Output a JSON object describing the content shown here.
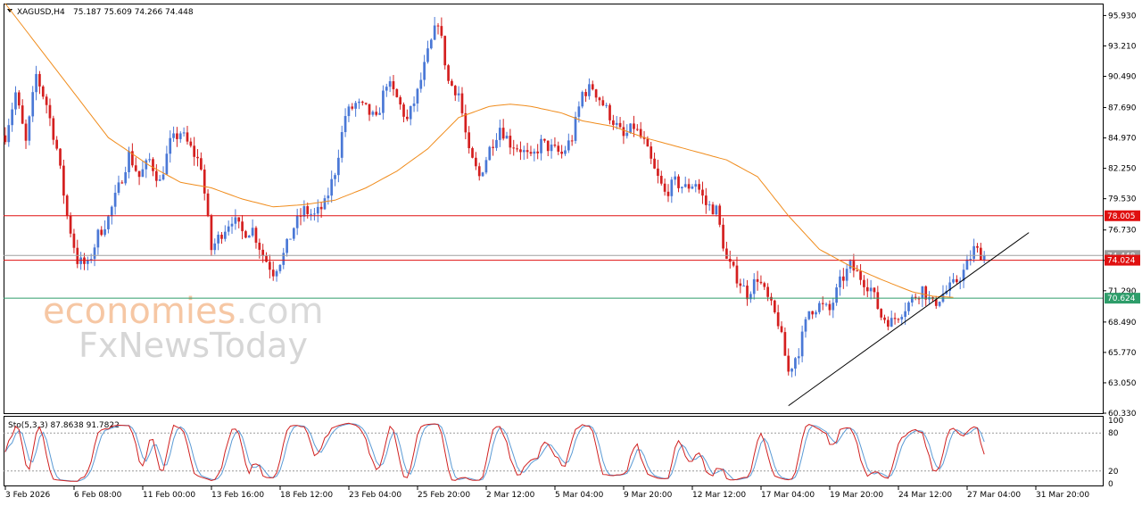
{
  "header": {
    "symbol": "XAGUSD,H4",
    "ohlc": "75.187 75.609 74.266 74.448"
  },
  "watermark": {
    "line1_a": "economies",
    "line1_b": ".com",
    "line2": "FxNewsToday"
  },
  "colors": {
    "bull": "#4a78d6",
    "bear": "#d41f1f",
    "ma": "#f08c1c",
    "resistance": "#e01010",
    "support": "#2e9d6a",
    "current": "#a0a0a0",
    "stoch_main": "#d02020",
    "stoch_signal": "#5b9bd5"
  },
  "chart_data": {
    "type": "candlestick",
    "symbol": "XAGUSD",
    "timeframe": "H4",
    "ylim": [
      60.33,
      97.0
    ],
    "y_ticks": [
      "95.930",
      "93.210",
      "90.490",
      "87.690",
      "84.970",
      "82.250",
      "79.530",
      "76.730",
      "74.010",
      "71.290",
      "68.490",
      "65.770",
      "63.050",
      "60.330"
    ],
    "x_ticks": [
      "3 Feb 2026",
      "6 Feb 08:00",
      "11 Feb 00:00",
      "13 Feb 16:00",
      "18 Feb 12:00",
      "23 Feb 04:00",
      "25 Feb 20:00",
      "2 Mar 12:00",
      "5 Mar 04:00",
      "9 Mar 20:00",
      "12 Mar 12:00",
      "17 Mar 04:00",
      "19 Mar 20:00",
      "24 Mar 12:00",
      "27 Mar 04:00",
      "31 Mar 20:00"
    ],
    "price_path": [
      [
        0,
        85.2
      ],
      [
        3,
        89.0
      ],
      [
        6,
        84.5
      ],
      [
        9,
        90.6
      ],
      [
        12,
        88.0
      ],
      [
        15,
        84.0
      ],
      [
        18,
        78.0
      ],
      [
        21,
        74.0
      ],
      [
        24,
        73.5
      ],
      [
        27,
        76.3
      ],
      [
        30,
        77.8
      ],
      [
        33,
        80.5
      ],
      [
        36,
        83.5
      ],
      [
        39,
        81.5
      ],
      [
        42,
        83.0
      ],
      [
        45,
        81.0
      ],
      [
        48,
        84.5
      ],
      [
        51,
        85.5
      ],
      [
        54,
        84.0
      ],
      [
        57,
        82.5
      ],
      [
        60,
        75.0
      ],
      [
        63,
        76.5
      ],
      [
        66,
        77.8
      ],
      [
        69,
        76.5
      ],
      [
        72,
        76.8
      ],
      [
        75,
        74.5
      ],
      [
        78,
        73.0
      ],
      [
        81,
        74.5
      ],
      [
        84,
        77.0
      ],
      [
        87,
        78.5
      ],
      [
        90,
        78.0
      ],
      [
        93,
        79.0
      ],
      [
        96,
        82.0
      ],
      [
        99,
        87.0
      ],
      [
        102,
        88.0
      ],
      [
        105,
        87.5
      ],
      [
        108,
        86.5
      ],
      [
        111,
        90.0
      ],
      [
        114,
        88.5
      ],
      [
        117,
        86.5
      ],
      [
        120,
        89.0
      ],
      [
        123,
        92.5
      ],
      [
        126,
        95.5
      ],
      [
        129,
        90.0
      ],
      [
        132,
        89.0
      ],
      [
        135,
        83.5
      ],
      [
        138,
        81.5
      ],
      [
        141,
        84.0
      ],
      [
        144,
        86.0
      ],
      [
        147,
        84.5
      ],
      [
        150,
        84.0
      ],
      [
        153,
        83.0
      ],
      [
        156,
        84.5
      ],
      [
        159,
        84.0
      ],
      [
        162,
        83.5
      ],
      [
        165,
        85.0
      ],
      [
        168,
        89.0
      ],
      [
        171,
        89.5
      ],
      [
        174,
        88.0
      ],
      [
        177,
        86.5
      ],
      [
        180,
        85.0
      ],
      [
        183,
        86.0
      ],
      [
        186,
        84.5
      ],
      [
        189,
        82.0
      ],
      [
        192,
        80.0
      ],
      [
        195,
        81.0
      ],
      [
        198,
        80.5
      ],
      [
        201,
        81.0
      ],
      [
        204,
        79.0
      ],
      [
        207,
        78.5
      ],
      [
        210,
        74.0
      ],
      [
        213,
        72.5
      ],
      [
        216,
        71.0
      ],
      [
        219,
        72.5
      ],
      [
        222,
        70.5
      ],
      [
        225,
        68.5
      ],
      [
        228,
        64.0
      ],
      [
        231,
        66.0
      ],
      [
        234,
        69.5
      ],
      [
        237,
        70.0
      ],
      [
        240,
        69.5
      ],
      [
        243,
        72.0
      ],
      [
        246,
        73.5
      ],
      [
        249,
        72.5
      ],
      [
        252,
        71.5
      ],
      [
        255,
        69.0
      ],
      [
        258,
        68.5
      ],
      [
        261,
        69.5
      ],
      [
        264,
        70.5
      ],
      [
        267,
        71.5
      ],
      [
        270,
        70.0
      ],
      [
        273,
        71.0
      ],
      [
        276,
        71.8
      ],
      [
        279,
        73.0
      ],
      [
        282,
        75.0
      ],
      [
        285,
        74.448
      ]
    ],
    "ma_path": [
      [
        0,
        97.0
      ],
      [
        15,
        91.0
      ],
      [
        30,
        85.0
      ],
      [
        42,
        82.5
      ],
      [
        51,
        81.0
      ],
      [
        60,
        80.5
      ],
      [
        69,
        79.5
      ],
      [
        78,
        78.8
      ],
      [
        87,
        79.0
      ],
      [
        96,
        79.4
      ],
      [
        105,
        80.5
      ],
      [
        114,
        82.0
      ],
      [
        123,
        84.0
      ],
      [
        132,
        86.8
      ],
      [
        141,
        87.8
      ],
      [
        147,
        88.0
      ],
      [
        153,
        87.8
      ],
      [
        162,
        87.2
      ],
      [
        168,
        86.5
      ],
      [
        177,
        86.0
      ],
      [
        186,
        85.0
      ],
      [
        198,
        84.0
      ],
      [
        210,
        83.0
      ],
      [
        219,
        81.5
      ],
      [
        228,
        78.0
      ],
      [
        237,
        75.0
      ],
      [
        246,
        73.5
      ],
      [
        255,
        72.3
      ],
      [
        264,
        71.2
      ],
      [
        270,
        70.8
      ],
      [
        276,
        70.7
      ]
    ],
    "levels": [
      {
        "value": 78.005,
        "label": "78.005"
      },
      {
        "value": 74.024,
        "label": "74.024"
      },
      {
        "value": 70.624,
        "label": "70.624"
      }
    ],
    "current_label": "74.448",
    "current_price": 74.448,
    "trendline": [
      [
        228,
        61.0
      ],
      [
        298,
        76.5
      ]
    ],
    "stochastic": {
      "label": "Sto(5,3,3) 87.8638 91.7822",
      "ylim": [
        0,
        100
      ],
      "y_ticks": [
        "100",
        "80",
        "20",
        "0"
      ],
      "levels": [
        80,
        20
      ]
    }
  }
}
